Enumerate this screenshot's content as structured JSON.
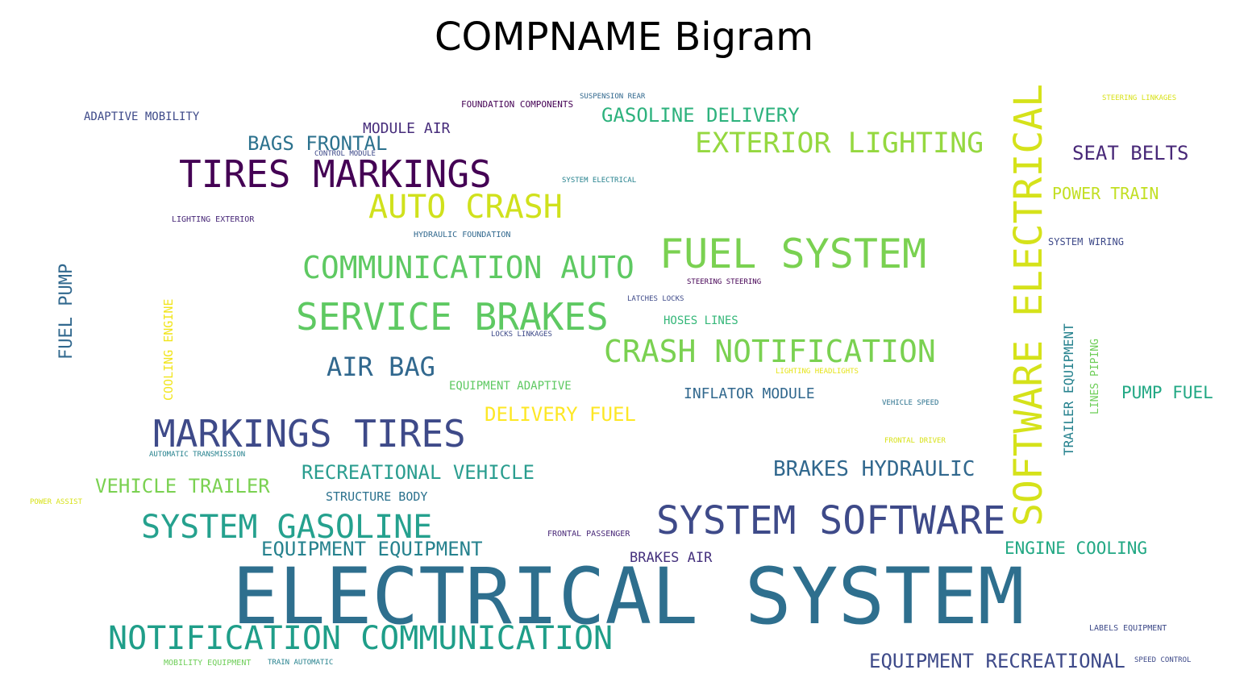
{
  "title": "COMPNAME Bigram",
  "palette": {
    "dark_purple": "#440154",
    "purple": "#482878",
    "indigo": "#3e4a89",
    "blue": "#31688e",
    "teal": "#26828e",
    "green_teal": "#1f9e89",
    "green": "#35b779",
    "light_green": "#6ece58",
    "lime": "#b5de2b",
    "yellow": "#fde725"
  },
  "words": [
    {
      "text": "ELECTRICAL SYSTEM",
      "color": "#2e6f8e"
    },
    {
      "text": "SOFTWARE ELECTRICAL",
      "color": "#d5e21a"
    },
    {
      "text": "MARKINGS TIRES",
      "color": "#3e4a89"
    },
    {
      "text": "TIRES MARKINGS",
      "color": "#440154"
    },
    {
      "text": "NOTIFICATION COMMUNICATION",
      "color": "#1f9e89"
    },
    {
      "text": "SYSTEM SOFTWARE",
      "color": "#3e4a89"
    },
    {
      "text": "FUEL SYSTEM",
      "color": "#7ad151"
    },
    {
      "text": "SERVICE BRAKES",
      "color": "#5ec962"
    },
    {
      "text": "CRASH NOTIFICATION",
      "color": "#7ad151"
    },
    {
      "text": "COMMUNICATION AUTO",
      "color": "#5ec962"
    },
    {
      "text": "SYSTEM GASOLINE",
      "color": "#25a18e"
    },
    {
      "text": "AUTO CRASH",
      "color": "#d0e11c"
    },
    {
      "text": "EXTERIOR LIGHTING",
      "color": "#95d840"
    },
    {
      "text": "AIR BAG",
      "color": "#31688e"
    },
    {
      "text": "EQUIPMENT RECREATIONAL",
      "color": "#3e4a89"
    },
    {
      "text": "RECREATIONAL VEHICLE",
      "color": "#2a9d8f"
    },
    {
      "text": "EQUIPMENT EQUIPMENT",
      "color": "#26828e"
    },
    {
      "text": "BRAKES HYDRAULIC",
      "color": "#31688e"
    },
    {
      "text": "VEHICLE TRAILER",
      "color": "#7ad151"
    },
    {
      "text": "GASOLINE DELIVERY",
      "color": "#2db27d"
    },
    {
      "text": "BAGS FRONTAL",
      "color": "#2c728e"
    },
    {
      "text": "DELIVERY FUEL",
      "color": "#fde725"
    },
    {
      "text": "SEAT BELTS",
      "color": "#482878"
    },
    {
      "text": "FUEL PUMP",
      "color": "#31688e"
    },
    {
      "text": "ENGINE COOLING",
      "color": "#22a884"
    },
    {
      "text": "PUMP FUEL",
      "color": "#22a884"
    },
    {
      "text": "POWER TRAIN",
      "color": "#c2df23"
    },
    {
      "text": "MODULE AIR",
      "color": "#472d7b"
    },
    {
      "text": "INFLATOR MODULE",
      "color": "#31688e"
    },
    {
      "text": "TRAILER EQUIPMENT",
      "color": "#26828e"
    },
    {
      "text": "BRAKES AIR",
      "color": "#46327e"
    },
    {
      "text": "STRUCTURE BODY",
      "color": "#2c728e"
    },
    {
      "text": "COOLING ENGINE",
      "color": "#f1e51d"
    },
    {
      "text": "EQUIPMENT ADAPTIVE",
      "color": "#5ec962"
    },
    {
      "text": "HOSES LINES",
      "color": "#35b779"
    },
    {
      "text": "ADAPTIVE MOBILITY",
      "color": "#3e4a89"
    },
    {
      "text": "LINES PIPING",
      "color": "#6ece58"
    },
    {
      "text": "SYSTEM WIRING",
      "color": "#3e4a89"
    },
    {
      "text": "FOUNDATION COMPONENTS",
      "color": "#440154"
    },
    {
      "text": "CONTROL MODULE",
      "color": "#3e4a89"
    },
    {
      "text": "HYDRAULIC FOUNDATION",
      "color": "#31688e"
    },
    {
      "text": "LIGHTING EXTERIOR",
      "color": "#482878"
    },
    {
      "text": "SYSTEM ELECTRICAL",
      "color": "#26828e"
    },
    {
      "text": "SUSPENSION REAR",
      "color": "#31688e"
    },
    {
      "text": "STEERING LINKAGES",
      "color": "#d8e219"
    },
    {
      "text": "STEERING STEERING",
      "color": "#440154"
    },
    {
      "text": "LATCHES LOCKS",
      "color": "#3e4a89"
    },
    {
      "text": "LOCKS LINKAGES",
      "color": "#3e4a89"
    },
    {
      "text": "LIGHTING HEADLIGHTS",
      "color": "#e5e419"
    },
    {
      "text": "VEHICLE SPEED",
      "color": "#2c728e"
    },
    {
      "text": "FRONTAL DRIVER",
      "color": "#d8e219"
    },
    {
      "text": "AUTOMATIC TRANSMISSION",
      "color": "#26828e"
    },
    {
      "text": "POWER ASSIST",
      "color": "#d8e219"
    },
    {
      "text": "FRONTAL PASSENGER",
      "color": "#482878"
    },
    {
      "text": "LABELS EQUIPMENT",
      "color": "#3e4a89"
    },
    {
      "text": "MOBILITY EQUIPMENT",
      "color": "#6ece58"
    },
    {
      "text": "TRAIN AUTOMATIC",
      "color": "#26828e"
    },
    {
      "text": "SPEED CONTROL",
      "color": "#3e4a89"
    }
  ]
}
